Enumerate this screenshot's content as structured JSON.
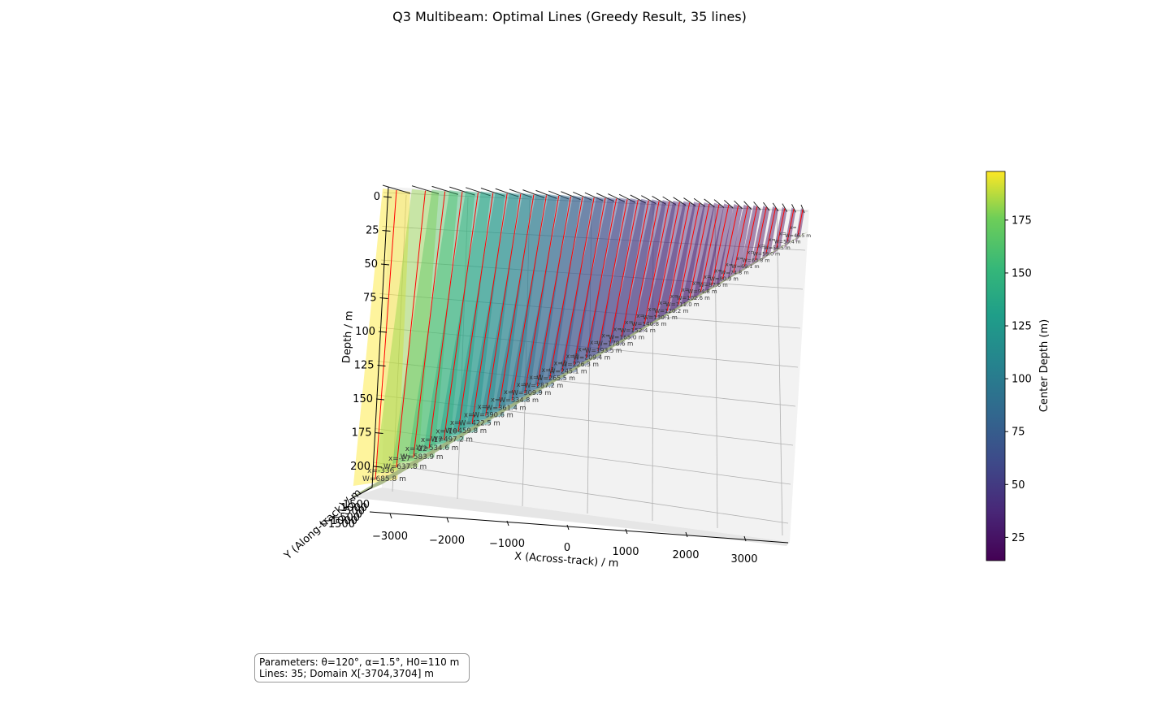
{
  "chart_data": {
    "type": "surface3d",
    "title": "Q3 Multibeam: Optimal Lines (Greedy Result, 35 lines)",
    "xlabel": "X (Across-track) / m",
    "ylabel": "Y (Along-track) / m",
    "zlabel": "Depth / m",
    "xlim": [
      -3704,
      3704
    ],
    "zlim": [
      0,
      200
    ],
    "x_ticks": [
      "−3000",
      "−2000",
      "−1000",
      "0",
      "1000",
      "2000",
      "3000"
    ],
    "z_ticks": [
      "0",
      "25",
      "50",
      "75",
      "100",
      "125",
      "150",
      "175",
      "200"
    ],
    "y_ticks": [
      "1500",
      "1000",
      "500",
      "0",
      "−500",
      "−1000",
      "−1500"
    ],
    "colorbar": {
      "label": "Center Depth (m)",
      "colormap": "viridis",
      "range": [
        14,
        198
      ],
      "ticks": [
        25,
        50,
        75,
        100,
        125,
        150,
        175
      ]
    },
    "parameters": {
      "theta_deg": 120,
      "alpha_deg": 1.5,
      "H0_m": 110,
      "line_count": 35,
      "domain_x": [
        -3704,
        3704
      ]
    },
    "series": [
      {
        "type": "survey_lines",
        "values": [
          {
            "label_x": "x=-336",
            "label_w": "W=685.8 m",
            "depth": 198
          },
          {
            "label_x": "x=-27",
            "label_w": "W=637.8 m",
            "depth": 182
          },
          {
            "label_x": "x=-22",
            "label_w": "W=583.9 m",
            "depth": 168
          },
          {
            "label_x": "x=-17",
            "label_w": "W=534.6 m",
            "depth": 155
          },
          {
            "label_x": "x=-10",
            "label_w": "W=497.2 m",
            "depth": 143
          },
          {
            "label_x": "x=-",
            "label_w": "W=459.8 m",
            "depth": 132
          },
          {
            "label_x": "x=-",
            "label_w": "W=422.5 m",
            "depth": 122
          },
          {
            "label_x": "x=-",
            "label_w": "W=390.6 m",
            "depth": 112
          },
          {
            "label_x": "x=-",
            "label_w": "W=361.4 m",
            "depth": 104
          },
          {
            "label_x": "x=",
            "label_w": "W=334.8 m",
            "depth": 96
          },
          {
            "label_x": "x=",
            "label_w": "W=309.9 m",
            "depth": 89
          },
          {
            "label_x": "x=1",
            "label_w": "W=287.2 m",
            "depth": 82
          },
          {
            "label_x": "x=1",
            "label_w": "W=265.5 m",
            "depth": 76
          },
          {
            "label_x": "x=1",
            "label_w": "W=245.1 m",
            "depth": 70
          },
          {
            "label_x": "x=1",
            "label_w": "W=226.3 m",
            "depth": 65
          },
          {
            "label_x": "x=",
            "label_w": "W=209.4 m",
            "depth": 60
          },
          {
            "label_x": "x=",
            "label_w": "W=193.5 m",
            "depth": 56
          },
          {
            "label_x": "x=",
            "label_w": "W=178.6 m",
            "depth": 52
          },
          {
            "label_x": "x=",
            "label_w": "W=165.0 m",
            "depth": 48
          },
          {
            "label_x": "x=",
            "label_w": "W=152.4 m",
            "depth": 45
          },
          {
            "label_x": "x=",
            "label_w": "W=140.8 m",
            "depth": 41
          },
          {
            "label_x": "x=",
            "label_w": "W=130.1 m",
            "depth": 38
          },
          {
            "label_x": "x=",
            "label_w": "W=120.2 m",
            "depth": 36
          },
          {
            "label_x": "x=",
            "label_w": "W=111.0 m",
            "depth": 33
          },
          {
            "label_x": "x=",
            "label_w": "W=102.6 m",
            "depth": 31
          },
          {
            "label_x": "x=",
            "label_w": "W=94.8 m",
            "depth": 28
          },
          {
            "label_x": "x=",
            "label_w": "W=87.6 m",
            "depth": 26
          },
          {
            "label_x": "x=",
            "label_w": "W=80.9 m",
            "depth": 24
          },
          {
            "label_x": "x=",
            "label_w": "W=74.8 m",
            "depth": 23
          },
          {
            "label_x": "x=",
            "label_w": "W=69.1 m",
            "depth": 21
          },
          {
            "label_x": "x=",
            "label_w": "W=63.8 m",
            "depth": 19
          },
          {
            "label_x": "x=",
            "label_w": "W=59.0 m",
            "depth": 18
          },
          {
            "label_x": "x=",
            "label_w": "W=54.5 m",
            "depth": 17
          },
          {
            "label_x": "x=",
            "label_w": "W=50.4 m",
            "depth": 15
          },
          {
            "label_x": "x=",
            "label_w": "W=46.5 m",
            "depth": 14
          }
        ]
      }
    ]
  },
  "params_box": {
    "line1": "Parameters: θ=120°, α=1.5°, H0=110 m",
    "line2": "Lines: 35; Domain X[-3704,3704] m"
  },
  "colors": {
    "survey_line": "#ff0000",
    "grid": "#b0b0b0",
    "pane": "#f2f2f2"
  }
}
